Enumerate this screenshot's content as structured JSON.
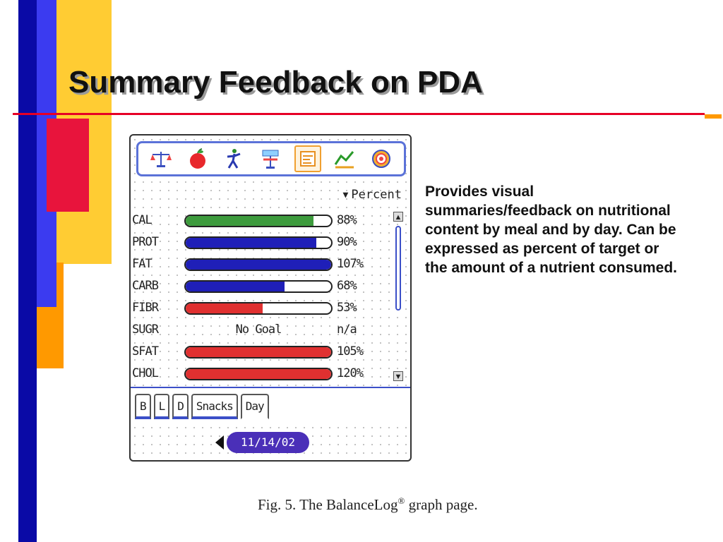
{
  "slide": {
    "title": "Summary Feedback on PDA",
    "description": "Provides visual summaries/feedback on nutritional content by meal and by day.  Can be expressed as percent of target or the amount of a nutrient consumed.",
    "caption_prefix": "Fig. 5. The BalanceLog",
    "caption_mark": "®",
    "caption_suffix": " graph page."
  },
  "pda": {
    "toolbar_icons": [
      "balance-scale-icon",
      "apple-icon",
      "activity-person-icon",
      "weight-sign-icon",
      "graph-page-icon",
      "trend-chart-icon",
      "target-icon"
    ],
    "view_selector": {
      "arrow": "▼",
      "label": "Percent"
    },
    "nutrients": [
      {
        "label": "CAL",
        "value_text": "88%",
        "fill": 0.88,
        "color": "#3d9b3d"
      },
      {
        "label": "PROT",
        "value_text": "90%",
        "fill": 0.9,
        "color": "#1f1fb8"
      },
      {
        "label": "FAT",
        "value_text": "107%",
        "fill": 1.0,
        "color": "#1f1fb8"
      },
      {
        "label": "CARB",
        "value_text": "68%",
        "fill": 0.68,
        "color": "#1f1fb8"
      },
      {
        "label": "FIBR",
        "value_text": "53%",
        "fill": 0.53,
        "color": "#e03030"
      },
      {
        "label": "SUGR",
        "value_text": "n/a",
        "no_goal": "No Goal"
      },
      {
        "label": "SFAT",
        "value_text": "105%",
        "fill": 1.0,
        "color": "#e03030"
      },
      {
        "label": "CHOL",
        "value_text": "120%",
        "fill": 1.0,
        "color": "#e03030"
      }
    ],
    "tabs": [
      {
        "label": "B",
        "active": false
      },
      {
        "label": "L",
        "active": false
      },
      {
        "label": "D",
        "active": false
      },
      {
        "label": "Snacks",
        "active": false
      },
      {
        "label": "Day",
        "active": true
      }
    ],
    "date": "11/14/02"
  },
  "colors": {
    "blue_bar": "#3333ee",
    "yellow_block": "#ffcc33",
    "red_block": "#e8143c",
    "orange_block": "#ff9900",
    "navy_bar": "#0a0aa6",
    "title_rule": "#e60026"
  }
}
